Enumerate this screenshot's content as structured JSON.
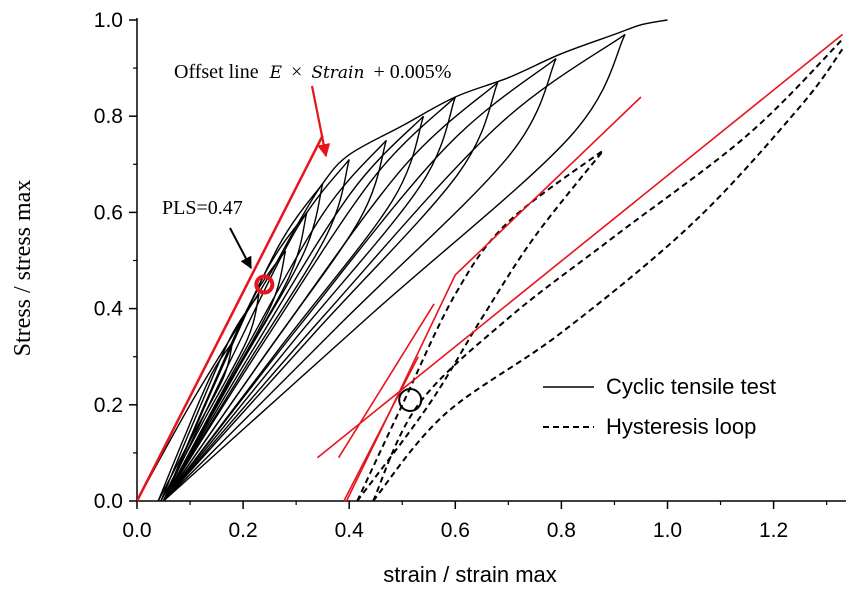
{
  "chart_data": {
    "type": "line",
    "xlabel": "strain / strain max",
    "ylabel": "Stress / stress max",
    "xlim": [
      0.0,
      1.33
    ],
    "ylim": [
      0.0,
      1.0
    ],
    "x_ticks": [
      "0.0",
      "0.2",
      "0.4",
      "0.6",
      "0.8",
      "1.0",
      "1.2"
    ],
    "y_ticks": [
      "0.0",
      "0.2",
      "0.4",
      "0.6",
      "0.8",
      "1.0"
    ],
    "grid": false,
    "legend": {
      "placement": "bottom-right",
      "entries": [
        {
          "label": "Cyclic tensile test",
          "style": "solid"
        },
        {
          "label": "Hysteresis loop",
          "style": "dashed"
        }
      ]
    },
    "annotations": {
      "offset_line_prefix": "Offset line",
      "offset_line_formula_E": "E",
      "offset_line_formula_times": "×",
      "offset_line_formula_strain": "Strain",
      "offset_line_formula_tail": "+ 0.005%",
      "pls_label": "PLS=0.47",
      "pls_point": {
        "x": 0.24,
        "y": 0.45
      }
    },
    "cyclic_loops": [
      {
        "start": 0.04,
        "peak_x": 0.18,
        "peak_y": 0.33
      },
      {
        "start": 0.045,
        "peak_x": 0.23,
        "peak_y": 0.43
      },
      {
        "start": 0.05,
        "peak_x": 0.28,
        "peak_y": 0.52
      },
      {
        "start": 0.05,
        "peak_x": 0.32,
        "peak_y": 0.6
      },
      {
        "start": 0.05,
        "peak_x": 0.35,
        "peak_y": 0.66
      },
      {
        "start": 0.05,
        "peak_x": 0.4,
        "peak_y": 0.71
      },
      {
        "start": 0.05,
        "peak_x": 0.47,
        "peak_y": 0.75
      },
      {
        "start": 0.05,
        "peak_x": 0.54,
        "peak_y": 0.8
      },
      {
        "start": 0.05,
        "peak_x": 0.6,
        "peak_y": 0.84
      },
      {
        "start": 0.05,
        "peak_x": 0.68,
        "peak_y": 0.87
      },
      {
        "start": 0.05,
        "peak_x": 0.79,
        "peak_y": 0.92
      },
      {
        "start": 0.05,
        "peak_x": 0.92,
        "peak_y": 0.97
      }
    ],
    "envelope": [
      [
        0.0,
        0.0
      ],
      [
        0.1,
        0.2
      ],
      [
        0.2,
        0.38
      ],
      [
        0.25,
        0.47
      ],
      [
        0.3,
        0.57
      ],
      [
        0.35,
        0.66
      ],
      [
        0.4,
        0.72
      ],
      [
        0.5,
        0.78
      ],
      [
        0.6,
        0.84
      ],
      [
        0.7,
        0.88
      ],
      [
        0.8,
        0.93
      ],
      [
        0.9,
        0.97
      ],
      [
        0.95,
        0.99
      ],
      [
        1.0,
        1.0
      ]
    ],
    "offset_line": [
      [
        0.0,
        0.0
      ],
      [
        0.35,
        0.76
      ]
    ],
    "hysteresis_loops": [
      {
        "name": "inner",
        "unload": [
          [
            0.415,
            0.0
          ],
          [
            0.5,
            0.2
          ],
          [
            0.6,
            0.43
          ],
          [
            0.7,
            0.58
          ],
          [
            0.88,
            0.73
          ]
        ],
        "reload": [
          [
            0.415,
            0.0
          ],
          [
            0.55,
            0.2
          ],
          [
            0.65,
            0.38
          ],
          [
            0.75,
            0.55
          ],
          [
            0.88,
            0.73
          ]
        ]
      },
      {
        "name": "outer",
        "unload": [
          [
            0.445,
            0.0
          ],
          [
            0.53,
            0.2
          ],
          [
            0.7,
            0.38
          ],
          [
            0.9,
            0.55
          ],
          [
            1.15,
            0.76
          ],
          [
            1.33,
            0.96
          ]
        ],
        "reload": [
          [
            0.445,
            0.0
          ],
          [
            0.58,
            0.18
          ],
          [
            0.8,
            0.35
          ],
          [
            1.05,
            0.58
          ],
          [
            1.25,
            0.82
          ],
          [
            1.33,
            0.94
          ]
        ]
      }
    ],
    "hysteresis_tangents": [
      [
        [
          0.395,
          0.0
        ],
        [
          0.47,
          0.17
        ],
        [
          0.6,
          0.47
        ],
        [
          0.95,
          0.84
        ]
      ],
      [
        [
          0.38,
          0.09
        ],
        [
          0.56,
          0.41
        ]
      ],
      [
        [
          0.39,
          0.0
        ],
        [
          0.53,
          0.3
        ]
      ],
      [
        [
          0.34,
          0.09
        ],
        [
          1.33,
          0.97
        ]
      ]
    ],
    "hysteresis_point": {
      "x": 0.515,
      "y": 0.21
    }
  }
}
